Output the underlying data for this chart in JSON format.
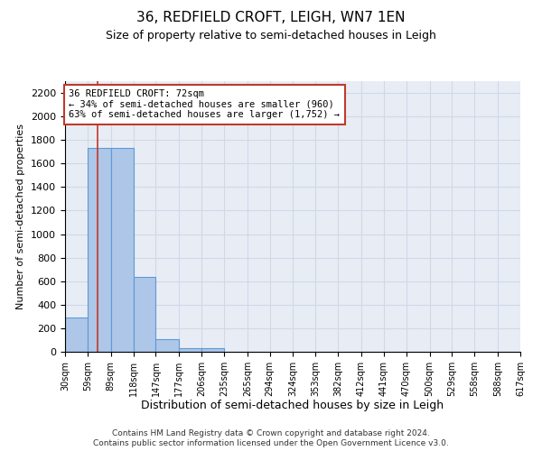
{
  "title": "36, REDFIELD CROFT, LEIGH, WN7 1EN",
  "subtitle": "Size of property relative to semi-detached houses in Leigh",
  "xlabel": "Distribution of semi-detached houses by size in Leigh",
  "ylabel": "Number of semi-detached properties",
  "bin_edges": [
    30,
    59,
    89,
    118,
    147,
    177,
    206,
    235,
    265,
    294,
    324,
    353,
    382,
    412,
    441,
    470,
    500,
    529,
    558,
    588,
    617
  ],
  "bar_heights": [
    290,
    1730,
    1730,
    640,
    110,
    30,
    30,
    0,
    0,
    0,
    0,
    0,
    0,
    0,
    0,
    0,
    0,
    0,
    0,
    0
  ],
  "bar_color": "#aec6e8",
  "bar_edge_color": "#5b9bd5",
  "property_size": 72,
  "property_line_color": "#c0392b",
  "annotation_text": "36 REDFIELD CROFT: 72sqm\n← 34% of semi-detached houses are smaller (960)\n63% of semi-detached houses are larger (1,752) →",
  "annotation_box_color": "#c0392b",
  "annotation_bg_color": "white",
  "ylim": [
    0,
    2300
  ],
  "yticks": [
    0,
    200,
    400,
    600,
    800,
    1000,
    1200,
    1400,
    1600,
    1800,
    2000,
    2200
  ],
  "tick_labels": [
    "30sqm",
    "59sqm",
    "89sqm",
    "118sqm",
    "147sqm",
    "177sqm",
    "206sqm",
    "235sqm",
    "265sqm",
    "294sqm",
    "324sqm",
    "353sqm",
    "382sqm",
    "412sqm",
    "441sqm",
    "470sqm",
    "500sqm",
    "529sqm",
    "558sqm",
    "588sqm",
    "617sqm"
  ],
  "grid_color": "#d0d8e8",
  "bg_color": "#e8edf5",
  "footer_line1": "Contains HM Land Registry data © Crown copyright and database right 2024.",
  "footer_line2": "Contains public sector information licensed under the Open Government Licence v3.0."
}
